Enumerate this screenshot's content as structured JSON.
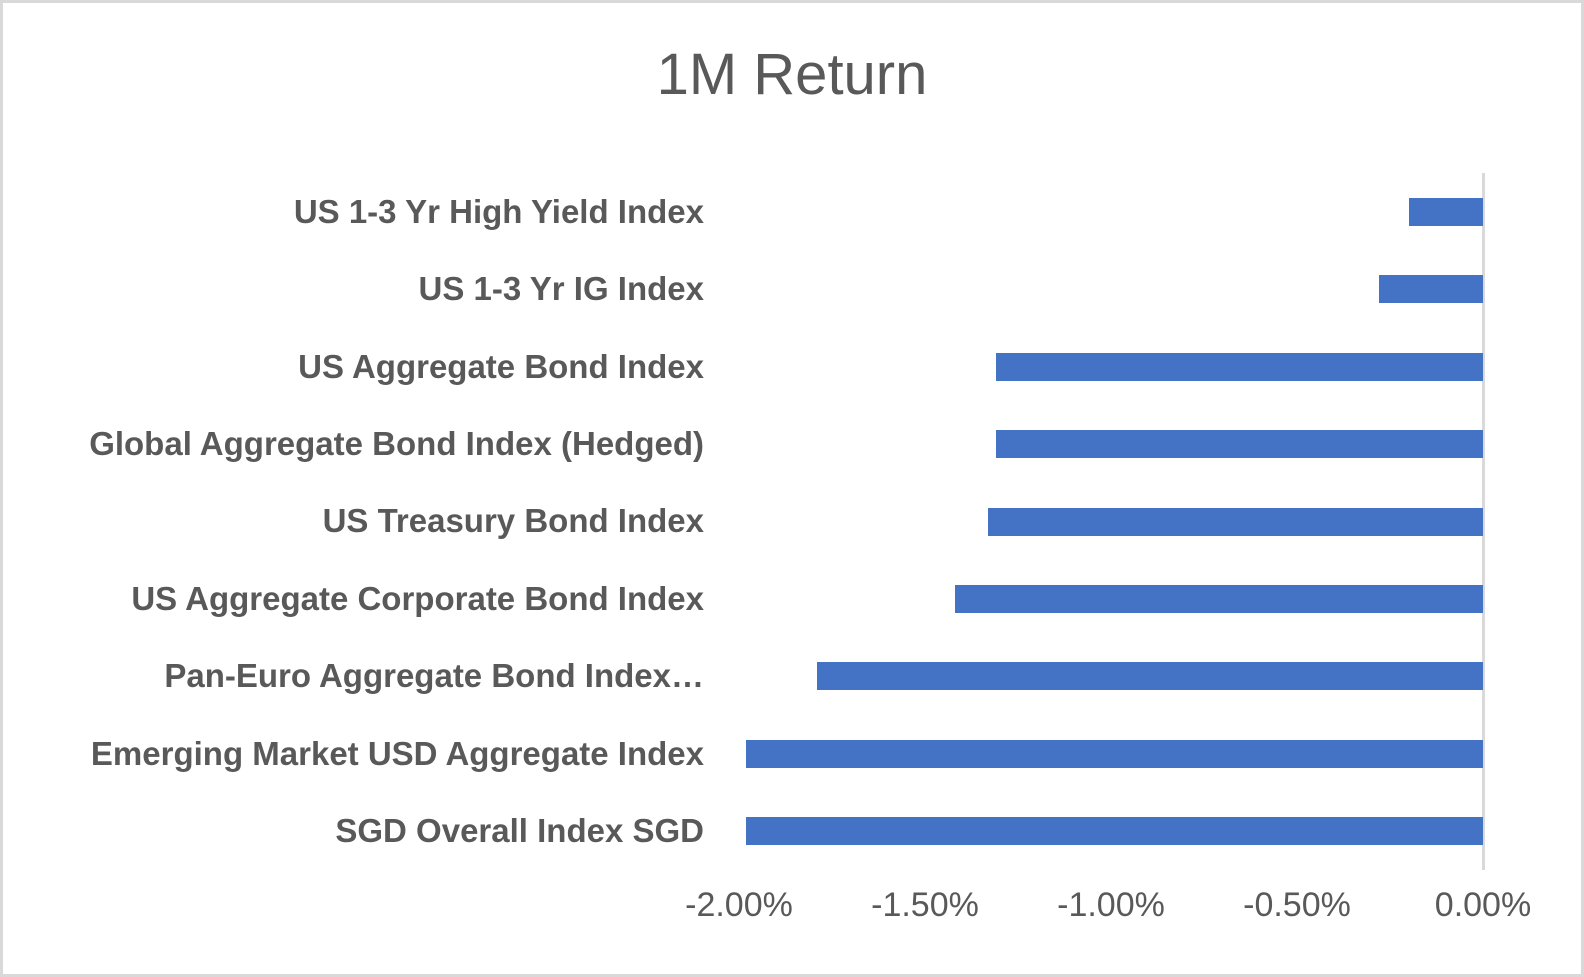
{
  "chart_data": {
    "type": "bar",
    "orientation": "horizontal",
    "title": "1M Return",
    "categories": [
      "US 1-3 Yr High Yield Index",
      "US 1-3 Yr IG Index",
      "US Aggregate Bond Index",
      "Global Aggregate Bond Index (Hedged)",
      "US Treasury Bond Index",
      "US Aggregate Corporate Bond Index",
      "Pan-Euro Aggregate Bond Index…",
      "Emerging Market USD Aggregate Index",
      "SGD Overall Index SGD"
    ],
    "values": [
      -0.2,
      -0.28,
      -1.31,
      -1.31,
      -1.33,
      -1.42,
      -1.79,
      -1.98,
      -1.98
    ],
    "unit": "%",
    "xlabel": "",
    "ylabel": "",
    "xlim": [
      -2.0,
      0.0
    ],
    "x_ticks": [
      "-2.00%",
      "-1.50%",
      "-1.00%",
      "-0.50%",
      "0.00%"
    ],
    "x_tick_values": [
      -2.0,
      -1.5,
      -1.0,
      -0.5,
      0.0
    ],
    "grid": false,
    "legend": false,
    "colors": {
      "bar": "#4472c4",
      "axis_line": "#d9d9d9",
      "text": "#595959",
      "frame_border": "#d9d9d9",
      "background": "#ffffff"
    }
  }
}
